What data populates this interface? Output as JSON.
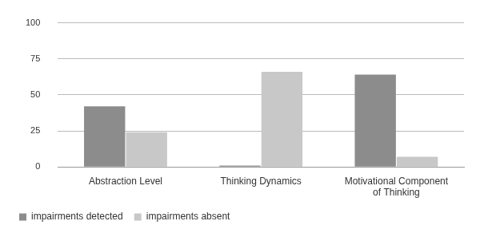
{
  "chart_data": {
    "type": "bar",
    "categories": [
      "Abstraction Level",
      "Thinking Dynamics",
      "Motivational Component of Thinking"
    ],
    "series": [
      {
        "name": "impairments detected",
        "color": "#8c8c8c",
        "values": [
          42,
          1,
          64
        ]
      },
      {
        "name": "impairments absent",
        "color": "#c8c8c8",
        "values": [
          24,
          66,
          7
        ]
      }
    ],
    "ylim": [
      0,
      100
    ],
    "yticks": [
      0,
      25,
      50,
      75,
      100
    ],
    "grid": true,
    "legend": "bottom"
  }
}
